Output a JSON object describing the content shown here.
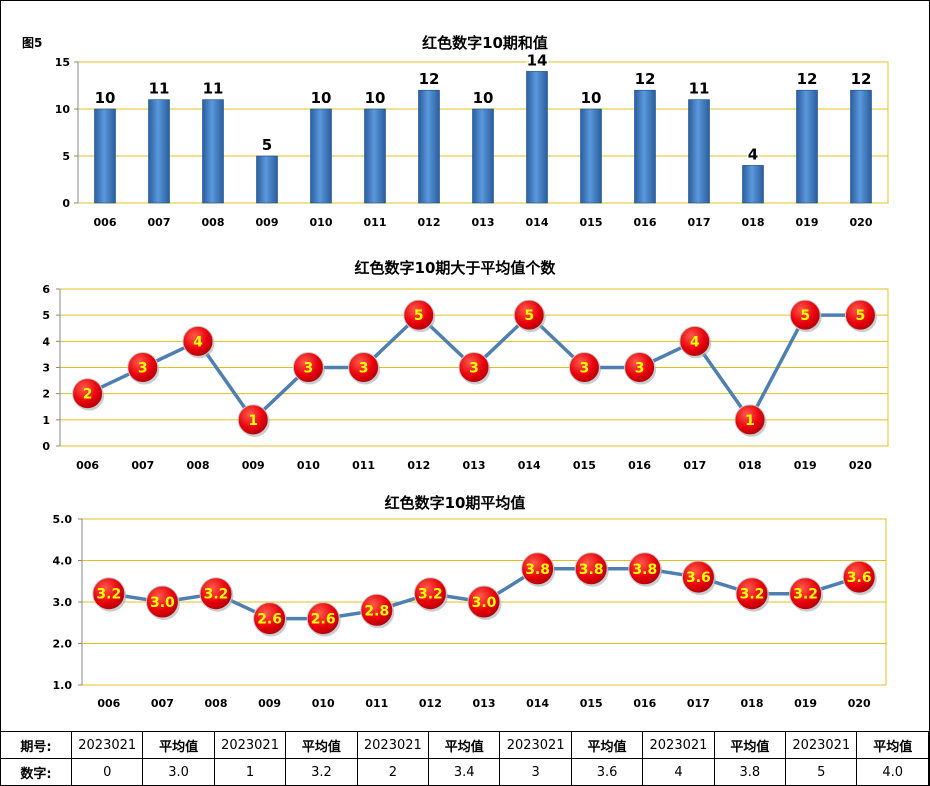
{
  "figure_label": "图5",
  "chart_data": [
    {
      "type": "bar",
      "title": "红色数字10期和值",
      "categories": [
        "006",
        "007",
        "008",
        "009",
        "010",
        "011",
        "012",
        "013",
        "014",
        "015",
        "016",
        "017",
        "018",
        "019",
        "020"
      ],
      "values": [
        10,
        11,
        11,
        5,
        10,
        10,
        12,
        10,
        14,
        10,
        12,
        11,
        4,
        12,
        12
      ],
      "ylim": [
        0,
        15
      ],
      "yticks": [
        "0",
        "5",
        "10",
        "15"
      ],
      "grid": true,
      "colors": {
        "bar": "#3a78c8",
        "grid": "#e0c020"
      }
    },
    {
      "type": "line",
      "title": "红色数字10期大于平均值个数",
      "categories": [
        "006",
        "007",
        "008",
        "009",
        "010",
        "011",
        "012",
        "013",
        "014",
        "015",
        "016",
        "017",
        "018",
        "019",
        "020"
      ],
      "values": [
        2,
        3,
        4,
        1,
        3,
        3,
        5,
        3,
        5,
        3,
        3,
        4,
        1,
        5,
        5
      ],
      "ylim": [
        0,
        6
      ],
      "yticks": [
        "0",
        "1",
        "2",
        "3",
        "4",
        "5",
        "6"
      ],
      "grid": true,
      "colors": {
        "line": "#4f7fb0",
        "marker": "#e8000b",
        "label": "#ffff00",
        "grid": "#e0c020"
      }
    },
    {
      "type": "line",
      "title": "红色数字10期平均值",
      "categories": [
        "006",
        "007",
        "008",
        "009",
        "010",
        "011",
        "012",
        "013",
        "014",
        "015",
        "016",
        "017",
        "018",
        "019",
        "020"
      ],
      "values": [
        3.2,
        3.0,
        3.2,
        2.6,
        2.6,
        2.8,
        3.2,
        3.0,
        3.8,
        3.8,
        3.8,
        3.6,
        3.2,
        3.2,
        3.6
      ],
      "labels": [
        "3.2",
        "3.0",
        "3.2",
        "2.6",
        "2.6",
        "2.8",
        "3.2",
        "3.0",
        "3.8",
        "3.8",
        "3.8",
        "3.6",
        "3.2",
        "3.2",
        "3.6"
      ],
      "ylim": [
        1.0,
        5.0
      ],
      "yticks": [
        "1.0",
        "2.0",
        "3.0",
        "4.0",
        "5.0"
      ],
      "grid": true,
      "colors": {
        "line": "#4f7fb0",
        "marker": "#e8000b",
        "label": "#ffff00",
        "grid": "#e0c020"
      }
    }
  ],
  "table": {
    "row1": [
      "期号:",
      "2023021",
      "平均值",
      "2023021",
      "平均值",
      "2023021",
      "平均值",
      "2023021",
      "平均值",
      "2023021",
      "平均值",
      "2023021",
      "平均值"
    ],
    "row2": [
      "数字:",
      "0",
      "3.0",
      "1",
      "3.2",
      "2",
      "3.4",
      "3",
      "3.6",
      "4",
      "3.8",
      "5",
      "4.0"
    ]
  }
}
